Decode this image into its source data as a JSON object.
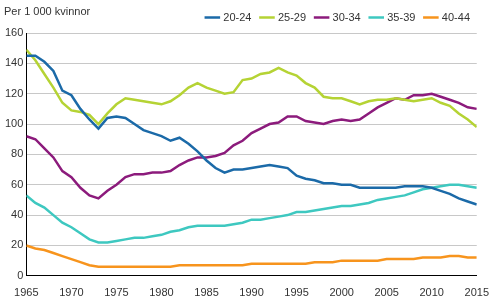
{
  "chart_data": {
    "type": "line",
    "ylabel": "Per 1 000 kvinnor",
    "x": [
      1965,
      1966,
      1967,
      1968,
      1969,
      1970,
      1971,
      1972,
      1973,
      1974,
      1975,
      1976,
      1977,
      1978,
      1979,
      1980,
      1981,
      1982,
      1983,
      1984,
      1985,
      1986,
      1987,
      1988,
      1989,
      1990,
      1991,
      1992,
      1993,
      1994,
      1995,
      1996,
      1997,
      1998,
      1999,
      2000,
      2001,
      2002,
      2003,
      2004,
      2005,
      2006,
      2007,
      2008,
      2009,
      2010,
      2011,
      2012,
      2013,
      2014,
      2015
    ],
    "series": [
      {
        "name": "20-24",
        "color": "#1b6aa8",
        "values": [
          145,
          145,
          141,
          135,
          122,
          119,
          110,
          103,
          97,
          104,
          105,
          104,
          100,
          96,
          94,
          92,
          89,
          91,
          87,
          82,
          76,
          71,
          68,
          70,
          70,
          71,
          72,
          73,
          72,
          71,
          66,
          64,
          63,
          61,
          61,
          60,
          60,
          58,
          58,
          58,
          58,
          58,
          59,
          59,
          59,
          58,
          56,
          54,
          51,
          49,
          47
        ]
      },
      {
        "name": "25-29",
        "color": "#b5d334",
        "values": [
          149,
          142,
          133,
          124,
          114,
          109,
          108,
          106,
          100,
          107,
          113,
          117,
          116,
          115,
          114,
          113,
          115,
          119,
          124,
          127,
          124,
          122,
          120,
          121,
          129,
          130,
          133,
          134,
          137,
          134,
          132,
          127,
          124,
          118,
          117,
          117,
          115,
          113,
          115,
          116,
          116,
          117,
          116,
          115,
          116,
          117,
          114,
          112,
          107,
          103,
          98
        ]
      },
      {
        "name": "30-34",
        "color": "#8c1b7c",
        "values": [
          92,
          90,
          84,
          78,
          69,
          65,
          58,
          53,
          51,
          56,
          60,
          65,
          67,
          67,
          68,
          68,
          69,
          73,
          76,
          78,
          78,
          79,
          81,
          86,
          89,
          94,
          97,
          100,
          101,
          105,
          105,
          102,
          101,
          100,
          102,
          103,
          102,
          103,
          107,
          111,
          114,
          117,
          116,
          119,
          119,
          120,
          118,
          116,
          114,
          111,
          110
        ]
      },
      {
        "name": "35-39",
        "color": "#3ec8c0",
        "values": [
          53,
          48,
          45,
          40,
          35,
          32,
          28,
          24,
          22,
          22,
          23,
          24,
          25,
          25,
          26,
          27,
          29,
          30,
          32,
          33,
          33,
          33,
          33,
          34,
          35,
          37,
          37,
          38,
          39,
          40,
          42,
          42,
          43,
          44,
          45,
          46,
          46,
          47,
          48,
          50,
          51,
          52,
          53,
          55,
          57,
          58,
          59,
          60,
          60,
          59,
          58
        ]
      },
      {
        "name": "40-44",
        "color": "#f7941d",
        "values": [
          20,
          18,
          17,
          15,
          13,
          11,
          9,
          7,
          6,
          6,
          6,
          6,
          6,
          6,
          6,
          6,
          6,
          7,
          7,
          7,
          7,
          7,
          7,
          7,
          7,
          8,
          8,
          8,
          8,
          8,
          8,
          8,
          9,
          9,
          9,
          10,
          10,
          10,
          10,
          10,
          11,
          11,
          11,
          11,
          12,
          12,
          12,
          13,
          13,
          12,
          12
        ]
      }
    ],
    "xlim": [
      1965,
      2015
    ],
    "xticks": [
      1965,
      1970,
      1975,
      1980,
      1985,
      1990,
      1995,
      2000,
      2005,
      2010,
      2015
    ],
    "ylim": [
      0,
      160
    ],
    "yticks": [
      0,
      20,
      40,
      60,
      80,
      100,
      120,
      140,
      160
    ],
    "grid": true,
    "legend": "top"
  }
}
